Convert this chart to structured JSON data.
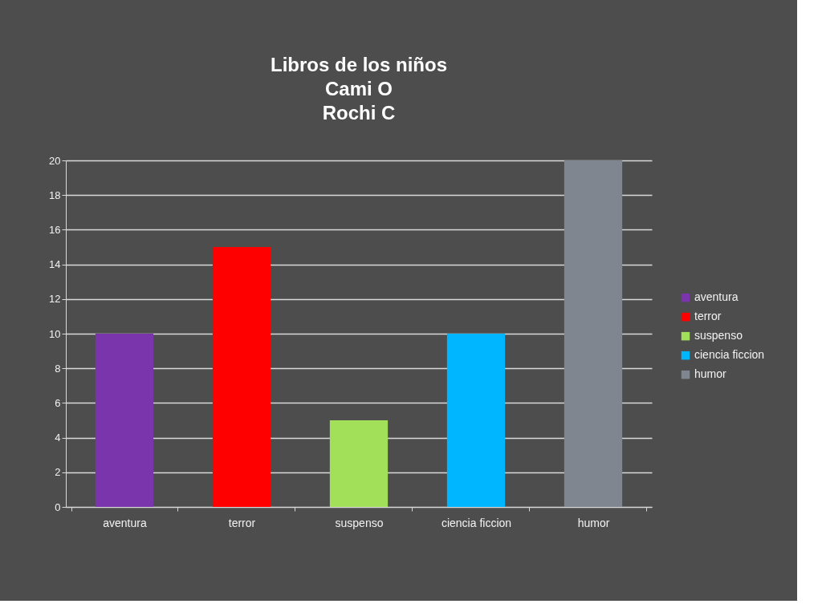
{
  "chart_data": {
    "type": "bar",
    "title": "Libros de los niños\nCami O\nRochi C",
    "categories": [
      "aventura",
      "terror",
      "suspenso",
      "ciencia ficcion",
      "humor"
    ],
    "series": [
      {
        "name": "aventura",
        "color": "#7a35ad",
        "values": [
          10,
          null,
          null,
          null,
          null
        ]
      },
      {
        "name": "terror",
        "color": "#ff0000",
        "values": [
          null,
          15,
          null,
          null,
          null
        ]
      },
      {
        "name": "suspenso",
        "color": "#a2e05a",
        "values": [
          null,
          null,
          5,
          null,
          null
        ]
      },
      {
        "name": "ciencia ficcion",
        "color": "#00b6ff",
        "values": [
          null,
          null,
          null,
          10,
          null
        ]
      },
      {
        "name": "humor",
        "color": "#7f8690",
        "values": [
          null,
          null,
          null,
          null,
          20
        ]
      }
    ],
    "stacked": true,
    "ylim": [
      0,
      20
    ],
    "yticks": [
      0,
      2,
      4,
      6,
      8,
      10,
      12,
      14,
      16,
      18,
      20
    ],
    "grid": "y",
    "legend": "right"
  }
}
